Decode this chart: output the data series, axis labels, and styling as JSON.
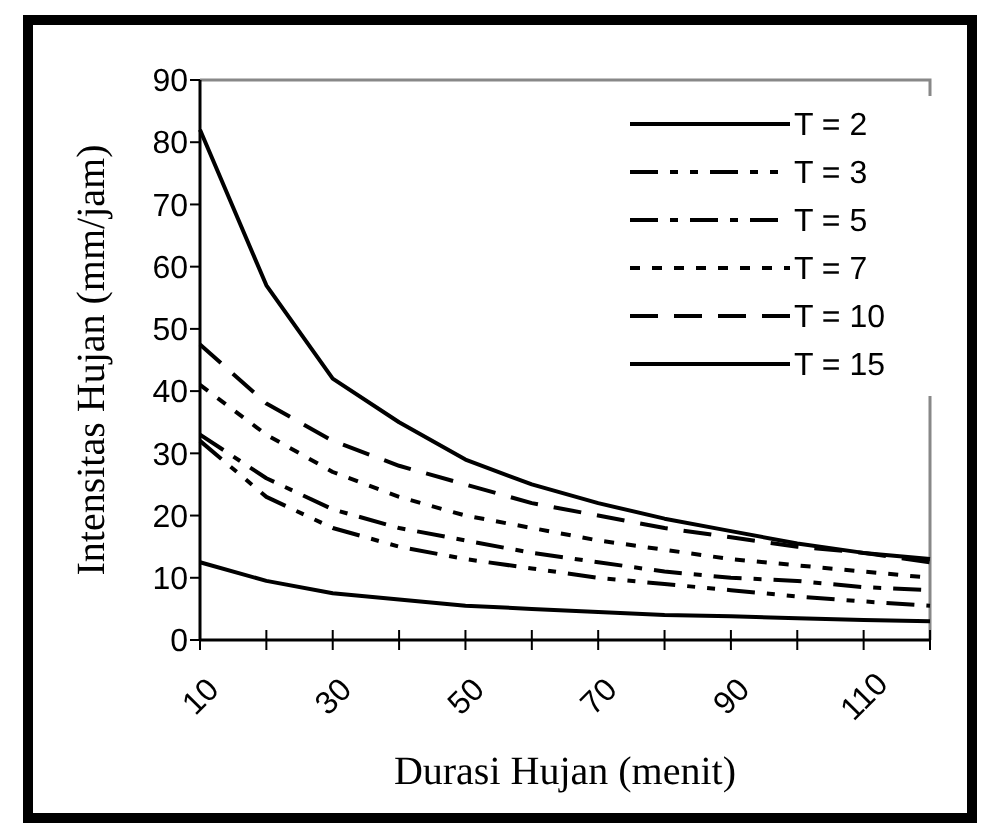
{
  "chart_data": {
    "type": "line",
    "xlabel": "Durasi Hujan (menit)",
    "ylabel": "Intensitas Hujan (mm/jam)",
    "x": [
      10,
      20,
      30,
      40,
      50,
      60,
      70,
      80,
      90,
      100,
      110,
      120
    ],
    "xlim": [
      10,
      120
    ],
    "xticks": [
      10,
      {
        "value": 20,
        "label": null
      },
      30,
      {
        "value": 40,
        "label": null
      },
      50,
      {
        "value": 60,
        "label": null
      },
      70,
      {
        "value": 80,
        "label": null
      },
      90,
      {
        "value": 100,
        "label": null
      },
      110,
      {
        "value": 120,
        "label": null
      }
    ],
    "ylim": [
      0,
      90
    ],
    "yticks": [
      0,
      10,
      20,
      30,
      40,
      50,
      60,
      70,
      80,
      90
    ],
    "grid": false,
    "legend": "top right",
    "series": [
      {
        "name": "T = 2",
        "color": "#000000",
        "line_style": "solid",
        "values": [
          12.5,
          9.5,
          7.5,
          6.5,
          5.5,
          5,
          4.5,
          4,
          3.8,
          3.5,
          3.2,
          3
        ]
      },
      {
        "name": "T = 3",
        "color": "#000000",
        "line_style": "dashdotdot",
        "values": [
          32,
          23,
          18,
          15,
          13,
          11.5,
          10,
          9,
          8,
          7,
          6.2,
          5.5
        ]
      },
      {
        "name": "T = 5",
        "color": "#000000",
        "line_style": "dashdot",
        "values": [
          33,
          26,
          21,
          18,
          16,
          14,
          12.5,
          11,
          10,
          9.5,
          8.5,
          8
        ]
      },
      {
        "name": "T = 7",
        "color": "#000000",
        "line_style": "dotted",
        "values": [
          41,
          33,
          27,
          23,
          20,
          18,
          16,
          14.5,
          13,
          12,
          11,
          10
        ]
      },
      {
        "name": "T = 10",
        "color": "#000000",
        "line_style": "dashed",
        "values": [
          47.5,
          38,
          32,
          28,
          25,
          22,
          20,
          18,
          16.5,
          15,
          14,
          12.5
        ]
      },
      {
        "name": "T = 15",
        "color": "#000000",
        "line_style": "solid",
        "values": [
          82,
          57,
          42,
          35,
          29,
          25,
          22,
          19.5,
          17.5,
          15.5,
          14,
          13
        ]
      }
    ]
  }
}
